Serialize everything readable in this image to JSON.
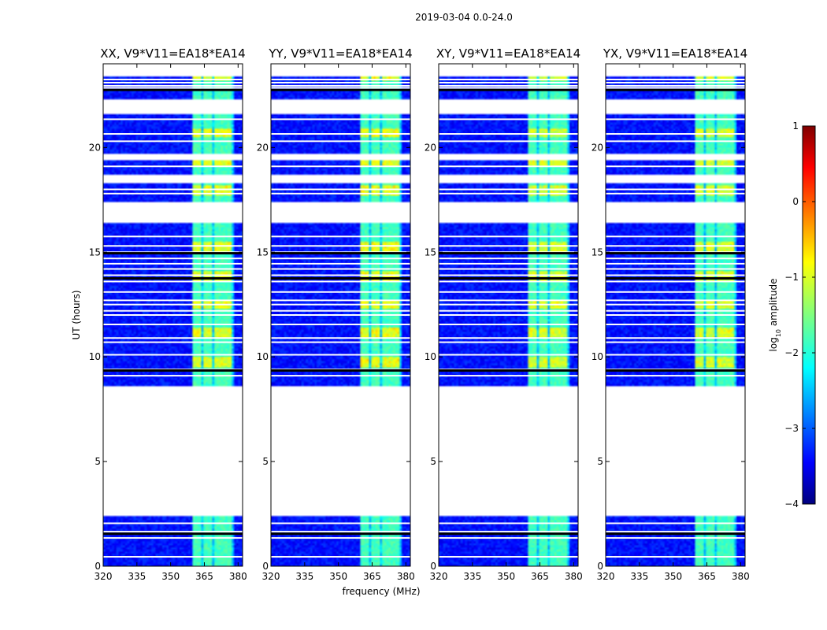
{
  "chart_data": {
    "type": "heatmap",
    "suptitle": "2019-03-04 0.0-24.0",
    "xlabel": "frequency (MHz)",
    "ylabel": "UT (hours)",
    "xlim": [
      320,
      382
    ],
    "ylim": [
      0,
      24
    ],
    "xticks": [
      320,
      335,
      350,
      365,
      380
    ],
    "yticks": [
      0,
      5,
      10,
      15,
      20
    ],
    "panels": [
      {
        "title": "XX, V9*V11=EA18*EA14",
        "band_gain": 1.0
      },
      {
        "title": "YY, V9*V11=EA18*EA14",
        "band_gain": 1.1
      },
      {
        "title": "XY, V9*V11=EA18*EA14",
        "band_gain": 0.95
      },
      {
        "title": "YX, V9*V11=EA18*EA14",
        "band_gain": 0.95
      }
    ],
    "colorbar": {
      "label": "log10 amplitude",
      "label_prefix": "log",
      "label_sub": "10",
      "label_suffix": " amplitude",
      "colormap": "jet",
      "range": [
        -4,
        1
      ],
      "ticks": [
        -4,
        -3,
        -2,
        -1,
        0,
        1
      ]
    },
    "data_segments_ut": [
      [
        0.0,
        2.4
      ],
      [
        8.6,
        16.4
      ],
      [
        17.4,
        18.3
      ],
      [
        18.7,
        19.35
      ],
      [
        19.75,
        21.6
      ],
      [
        22.3,
        23.4
      ]
    ],
    "gap_lines_ut": [
      0.45,
      1.35,
      1.65,
      2.05,
      9.1,
      9.4,
      10.1,
      10.7,
      10.9,
      11.55,
      12.0,
      12.2,
      12.5,
      12.7,
      13.1,
      13.6,
      13.9,
      14.2,
      14.45,
      14.7,
      15.0,
      15.3,
      15.75,
      17.8,
      18.0,
      19.1,
      20.3,
      20.65,
      21.35,
      22.85,
      22.95,
      23.1,
      23.25
    ],
    "flagged_lines_ut": [
      1.55,
      9.35,
      13.75,
      14.95,
      22.75
    ],
    "rfi_band_mhz": [
      360,
      378
    ],
    "rfi_subbands_mhz": [
      [
        360,
        364
      ],
      [
        364.7,
        368.8
      ],
      [
        369.5,
        372.8
      ],
      [
        373.5,
        377.5
      ]
    ],
    "background_log_amplitude": -3.3,
    "rfi_log_amplitude": -1.8,
    "rfi_peak_log_amplitude": -0.9
  }
}
